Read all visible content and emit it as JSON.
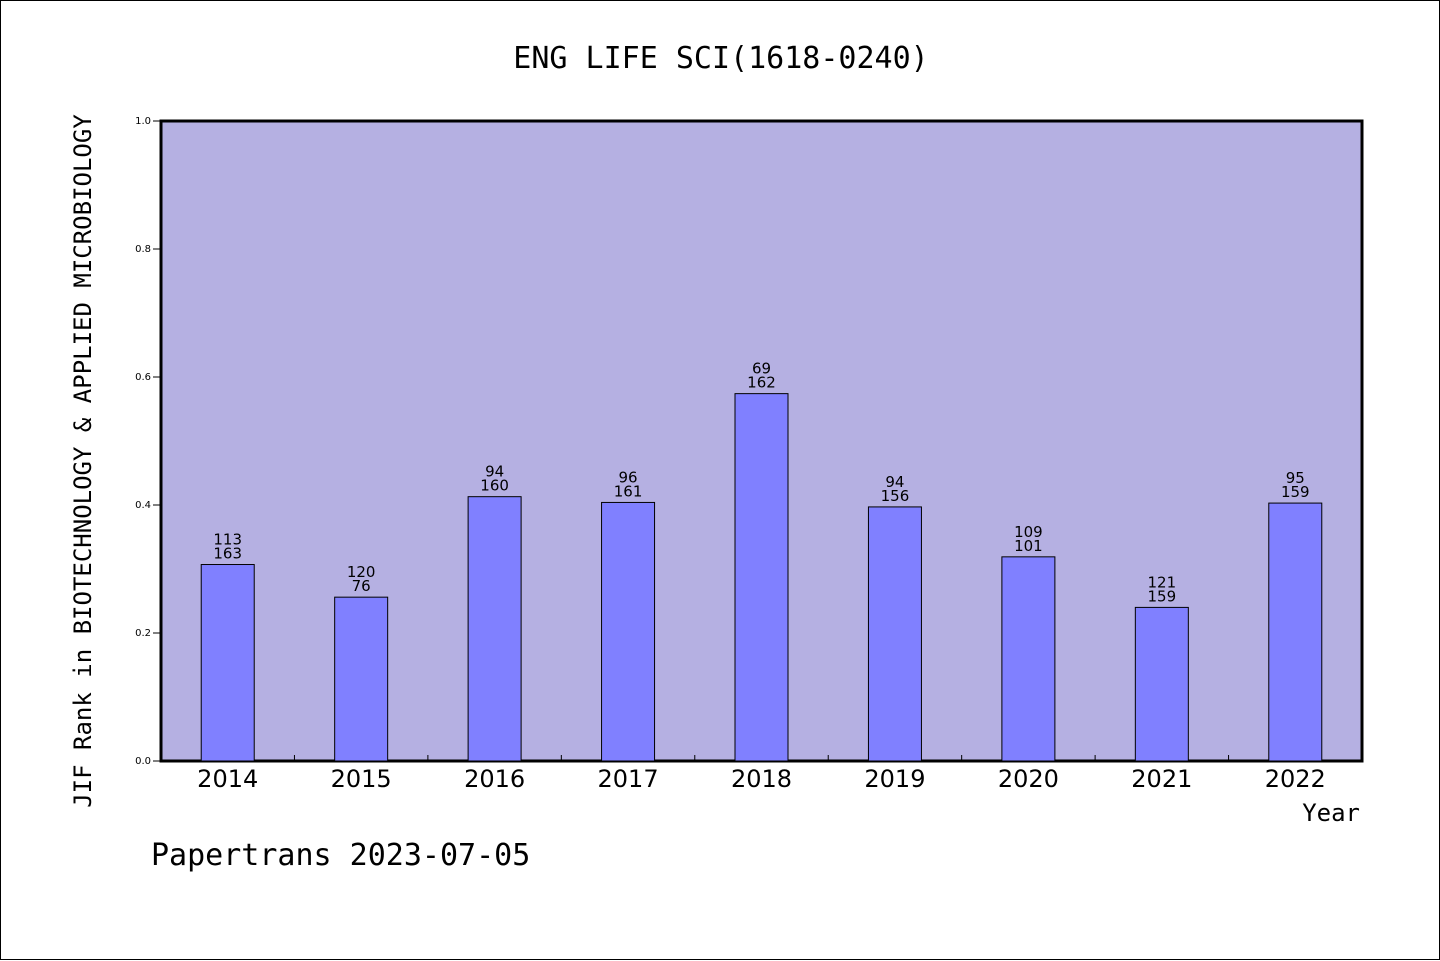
{
  "chart_data": {
    "type": "bar",
    "title": "ENG LIFE SCI(1618-0240)",
    "xlabel": "Year",
    "ylabel": "JIF Rank in BIOTECHNOLOGY & APPLIED MICROBIOLOGY",
    "ylim": [
      0,
      1.0
    ],
    "yticks": [
      "0.0",
      "0.2",
      "0.4",
      "0.6",
      "0.8",
      "1.0"
    ],
    "ytick_values": [
      0.0,
      0.2,
      0.4,
      0.6,
      0.8,
      1.0
    ],
    "categories": [
      "2014",
      "2015",
      "2016",
      "2017",
      "2018",
      "2019",
      "2020",
      "2021",
      "2022"
    ],
    "values": [
      0.307,
      0.256,
      0.413,
      0.404,
      0.574,
      0.397,
      0.319,
      0.24,
      0.403
    ],
    "rank_labels": [
      [
        "113",
        "163"
      ],
      [
        "120",
        "76"
      ],
      [
        "94",
        "160"
      ],
      [
        "96",
        "161"
      ],
      [
        "69",
        "162"
      ],
      [
        "94",
        "156"
      ],
      [
        "109",
        "101"
      ],
      [
        "121",
        "159"
      ],
      [
        "95",
        "159"
      ]
    ],
    "grid": false,
    "colors": {
      "plot_background": "#b5b0e2",
      "bar_fill": "#8080ff",
      "bar_stroke": "#000000"
    }
  },
  "footer": {
    "watermark": "Papertrans 2023-07-05"
  }
}
